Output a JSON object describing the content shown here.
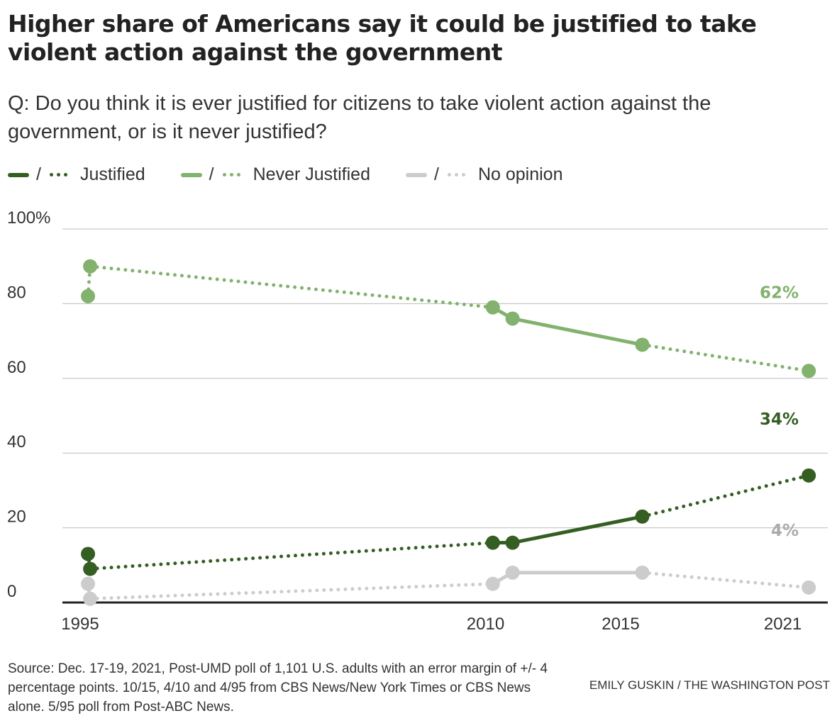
{
  "title": "Higher share of Americans say it could be justified to take violent action against the government",
  "subtitle": "Q: Do you think it is ever justified for citizens to take violent action against the government, or is it never justified?",
  "source": "Source: Dec. 17-19, 2021, Post-UMD poll of 1,101 U.S. adults with an error margin of +/- 4 percentage points. 10/15, 4/10 and 4/95 from CBS News/New York Times or CBS News alone. 5/95 poll from Post-ABC News.",
  "credit": "EMILY GUSKIN / THE WASHINGTON POST",
  "chart_data": {
    "type": "line",
    "x": [
      1995.29,
      1995.37,
      2010.27,
      2011.0,
      2015.8,
      2021.96
    ],
    "xticks": [
      1995,
      2010,
      2015,
      2021
    ],
    "xtick_labels": [
      "1995",
      "2010",
      "2015",
      "2021"
    ],
    "ylim": [
      0,
      100
    ],
    "yticks": [
      0,
      20,
      40,
      60,
      80,
      100
    ],
    "ytick_labels": [
      "0",
      "20",
      "40",
      "60",
      "80",
      "100%"
    ],
    "grid": true,
    "legend_placement": "top-left",
    "legend_separator": "/",
    "line_styles": [
      "dotted",
      "dotted",
      "solid",
      "solid",
      "dotted"
    ],
    "series": [
      {
        "name": "Justified",
        "color": "#355e23",
        "values": [
          13,
          9,
          16,
          16,
          23,
          34
        ],
        "end_label": "34%"
      },
      {
        "name": "Never Justified",
        "color": "#82b26d",
        "values": [
          82,
          90,
          79,
          76,
          69,
          62
        ],
        "end_label": "62%"
      },
      {
        "name": "No opinion",
        "color": "#cccccc",
        "label_color": "#aaaaaa",
        "values": [
          5,
          1,
          5,
          8,
          8,
          4
        ],
        "end_label": "4%"
      }
    ]
  }
}
